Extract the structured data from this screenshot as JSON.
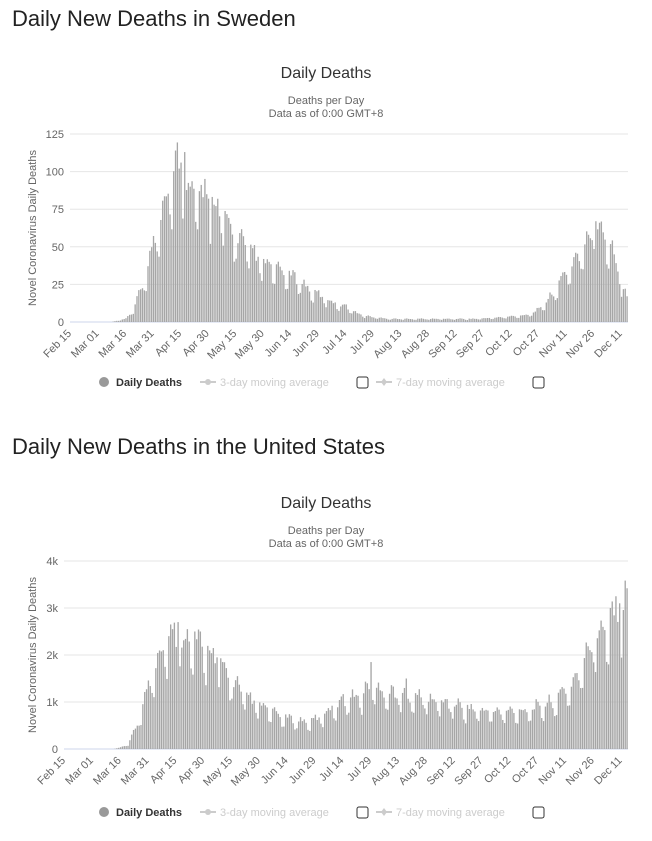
{
  "sections": [
    {
      "heading": "Daily New Deaths in Sweden"
    },
    {
      "heading": "Daily New Deaths in the United States"
    }
  ],
  "colors": {
    "bars": "#a6a6a6",
    "grid": "#e6e6e6",
    "text": "#666666",
    "legend_off": "#cccccc",
    "legend_on": "#333333"
  },
  "legend": {
    "daily": "Daily Deaths",
    "ma3": "3-day moving average",
    "ma7": "7-day moving average",
    "ma3_checked": false,
    "ma7_checked": false
  },
  "chart_data": [
    {
      "id": "sweden",
      "type": "bar",
      "title": "Daily Deaths",
      "subtitle_lines": [
        "Deaths per Day",
        "Data as of 0:00 GMT+8"
      ],
      "ylabel": "Novel Coronavirus Daily Deaths",
      "ylim": [
        0,
        125
      ],
      "y_ticks": [
        0,
        25,
        50,
        75,
        100,
        125
      ],
      "y_tick_labels": [
        "0",
        "25",
        "50",
        "75",
        "100",
        "125"
      ],
      "x_tick_labels": [
        "Feb 15",
        "Mar 01",
        "Mar 16",
        "Mar 31",
        "Apr 15",
        "Apr 30",
        "May 15",
        "May 30",
        "Jun 14",
        "Jun 29",
        "Jul 14",
        "Jul 29",
        "Aug 13",
        "Aug 28",
        "Sep 12",
        "Sep 27",
        "Oct 12",
        "Oct 27",
        "Nov 11",
        "Nov 26",
        "Dec 11"
      ],
      "x_tick_indices": [
        0,
        15,
        30,
        45,
        60,
        75,
        90,
        105,
        120,
        135,
        150,
        165,
        180,
        195,
        210,
        225,
        240,
        255,
        270,
        285,
        300
      ],
      "series": [
        {
          "name": "Daily Deaths",
          "knots": [
            [
              0,
              0
            ],
            [
              22,
              0
            ],
            [
              26,
              1
            ],
            [
              30,
              2
            ],
            [
              34,
              8
            ],
            [
              38,
              20
            ],
            [
              42,
              35
            ],
            [
              46,
              55
            ],
            [
              50,
              75
            ],
            [
              54,
              90
            ],
            [
              58,
              100
            ],
            [
              62,
              95
            ],
            [
              66,
              85
            ],
            [
              70,
              82
            ],
            [
              74,
              80
            ],
            [
              78,
              75
            ],
            [
              82,
              70
            ],
            [
              86,
              60
            ],
            [
              90,
              55
            ],
            [
              94,
              50
            ],
            [
              98,
              45
            ],
            [
              102,
              40
            ],
            [
              106,
              36
            ],
            [
              110,
              35
            ],
            [
              114,
              32
            ],
            [
              118,
              30
            ],
            [
              122,
              28
            ],
            [
              126,
              25
            ],
            [
              130,
              20
            ],
            [
              134,
              18
            ],
            [
              138,
              15
            ],
            [
              142,
              13
            ],
            [
              146,
              11
            ],
            [
              150,
              10
            ],
            [
              155,
              6
            ],
            [
              160,
              4
            ],
            [
              165,
              3
            ],
            [
              175,
              2
            ],
            [
              200,
              2
            ],
            [
              220,
              2
            ],
            [
              235,
              3
            ],
            [
              245,
              4
            ],
            [
              250,
              5
            ],
            [
              255,
              8
            ],
            [
              260,
              14
            ],
            [
              265,
              22
            ],
            [
              270,
              32
            ],
            [
              275,
              40
            ],
            [
              280,
              48
            ],
            [
              285,
              58
            ],
            [
              288,
              62
            ],
            [
              291,
              55
            ],
            [
              294,
              50
            ],
            [
              297,
              40
            ],
            [
              300,
              25
            ],
            [
              303,
              15
            ]
          ],
          "peaks": [
            [
              57,
              114
            ],
            [
              60,
              106
            ],
            [
              62,
              113
            ],
            [
              59,
              102
            ],
            [
              65,
              90
            ],
            [
              70,
              87
            ],
            [
              72,
              83
            ],
            [
              75,
              82
            ],
            [
              78,
              78
            ],
            [
              286,
              67
            ],
            [
              288,
              66
            ]
          ]
        }
      ]
    },
    {
      "id": "us",
      "type": "bar",
      "title": "Daily Deaths",
      "subtitle_lines": [
        "Deaths per Day",
        "Data as of 0:00 GMT+8"
      ],
      "ylabel": "Novel Coronavirus Daily Deaths",
      "ylim": [
        0,
        4000
      ],
      "y_ticks": [
        0,
        1000,
        2000,
        3000,
        4000
      ],
      "y_tick_labels": [
        "0",
        "1k",
        "2k",
        "3k",
        "4k"
      ],
      "x_tick_labels": [
        "Feb 15",
        "Mar 01",
        "Mar 16",
        "Mar 31",
        "Apr 15",
        "Apr 30",
        "May 15",
        "May 30",
        "Jun 14",
        "Jun 29",
        "Jul 14",
        "Jul 29",
        "Aug 13",
        "Aug 28",
        "Sep 12",
        "Sep 27",
        "Oct 12",
        "Oct 27",
        "Nov 11",
        "Nov 26",
        "Dec 11"
      ],
      "x_tick_indices": [
        0,
        15,
        30,
        45,
        60,
        75,
        90,
        105,
        120,
        135,
        150,
        165,
        180,
        195,
        210,
        225,
        240,
        255,
        270,
        285,
        300
      ],
      "series": [
        {
          "name": "Daily Deaths",
          "knots": [
            [
              0,
              0
            ],
            [
              26,
              0
            ],
            [
              30,
              30
            ],
            [
              34,
              100
            ],
            [
              38,
              400
            ],
            [
              42,
              900
            ],
            [
              46,
              1400
            ],
            [
              50,
              1900
            ],
            [
              54,
              2200
            ],
            [
              58,
              2350
            ],
            [
              62,
              2300
            ],
            [
              66,
              2200
            ],
            [
              70,
              2100
            ],
            [
              74,
              2050
            ],
            [
              78,
              2000
            ],
            [
              82,
              1800
            ],
            [
              86,
              1600
            ],
            [
              90,
              1400
            ],
            [
              94,
              1200
            ],
            [
              98,
              1050
            ],
            [
              102,
              950
            ],
            [
              106,
              850
            ],
            [
              110,
              800
            ],
            [
              114,
              700
            ],
            [
              118,
              650
            ],
            [
              122,
              600
            ],
            [
              126,
              580
            ],
            [
              130,
              550
            ],
            [
              134,
              580
            ],
            [
              138,
              650
            ],
            [
              142,
              800
            ],
            [
              146,
              900
            ],
            [
              150,
              1000
            ],
            [
              155,
              1050
            ],
            [
              160,
              1100
            ],
            [
              165,
              1300
            ],
            [
              170,
              1200
            ],
            [
              175,
              1150
            ],
            [
              180,
              1100
            ],
            [
              185,
              1080
            ],
            [
              190,
              1050
            ],
            [
              195,
              1000
            ],
            [
              200,
              980
            ],
            [
              205,
              950
            ],
            [
              210,
              900
            ],
            [
              215,
              850
            ],
            [
              220,
              800
            ],
            [
              225,
              780
            ],
            [
              230,
              760
            ],
            [
              235,
              750
            ],
            [
              240,
              760
            ],
            [
              245,
              780
            ],
            [
              250,
              800
            ],
            [
              255,
              850
            ],
            [
              260,
              900
            ],
            [
              265,
              1000
            ],
            [
              270,
              1200
            ],
            [
              275,
              1400
            ],
            [
              280,
              1800
            ],
            [
              285,
              2200
            ],
            [
              290,
              2500
            ],
            [
              295,
              2700
            ],
            [
              300,
              2900
            ],
            [
              303,
              3000
            ]
          ],
          "peaks": [
            [
              57,
              2650
            ],
            [
              61,
              2700
            ],
            [
              58,
              2550
            ],
            [
              66,
              2550
            ],
            [
              70,
              2500
            ],
            [
              73,
              2500
            ],
            [
              82,
              1950
            ],
            [
              85,
              1850
            ],
            [
              93,
              1550
            ],
            [
              165,
              1850
            ],
            [
              184,
              1500
            ],
            [
              297,
              3250
            ],
            [
              294,
              3000
            ],
            [
              299,
              3100
            ]
          ]
        }
      ]
    }
  ]
}
